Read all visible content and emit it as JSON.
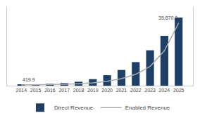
{
  "chart_data": {
    "type": "bar",
    "x": [
      2014,
      2015,
      2016,
      2017,
      2018,
      2019,
      2020,
      2021,
      2022,
      2023,
      2024,
      2025
    ],
    "series": [
      {
        "name": "Direct Revenue",
        "type": "bar",
        "color": "#1e3f66",
        "values": [
          0.3,
          0.5,
          0.7,
          1.0,
          1.5,
          2.5,
          4.0,
          6.0,
          9.0,
          13.5,
          19.0,
          26.0
        ]
      },
      {
        "name": "Enabled Revenue",
        "type": "line",
        "color": "#aaaaaa",
        "axis": "y2",
        "values": [
          419.9,
          500,
          650,
          850,
          1100,
          1600,
          2500,
          4000,
          6500,
          11000,
          20000,
          35870
        ]
      }
    ],
    "xlim": [
      2013,
      2026
    ],
    "xticks": [
      2014,
      2015,
      2016,
      2017,
      2018,
      2019,
      2020,
      2021,
      2022,
      2023,
      2024,
      2025
    ],
    "ylim": [
      0,
      30
    ],
    "y2lim": [
      0,
      45000
    ],
    "tick_labels": "x",
    "grid": false,
    "legend": "bottom",
    "annotations": [
      {
        "text": "419.9",
        "x": 2014,
        "y": 419.9,
        "axis": "y2"
      },
      {
        "text": "35,870.0",
        "x": 2025,
        "y": 35870,
        "axis": "y2"
      }
    ]
  }
}
